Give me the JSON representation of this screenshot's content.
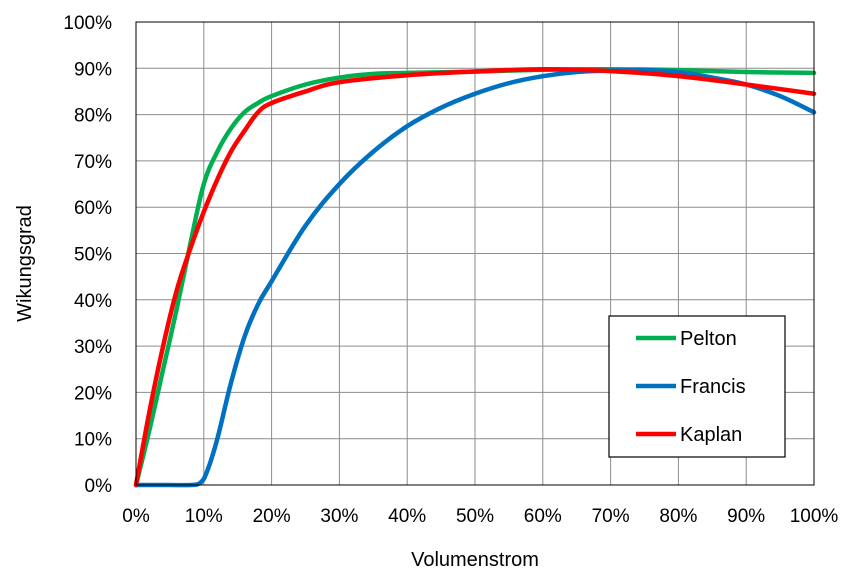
{
  "chart_data": {
    "type": "line",
    "xlabel": "Volumenstrom",
    "ylabel": "Wikungsgrad",
    "xlim": [
      0,
      100
    ],
    "ylim": [
      0,
      100
    ],
    "x_ticks": [
      "0%",
      "10%",
      "20%",
      "30%",
      "40%",
      "50%",
      "60%",
      "70%",
      "80%",
      "90%",
      "100%"
    ],
    "y_ticks": [
      "0%",
      "10%",
      "20%",
      "30%",
      "40%",
      "50%",
      "60%",
      "70%",
      "80%",
      "90%",
      "100%"
    ],
    "grid": true,
    "legend_position": "bottom-right",
    "series": [
      {
        "name": "Pelton",
        "color": "#00b050",
        "points": [
          [
            0,
            0
          ],
          [
            2,
            12
          ],
          [
            4,
            25
          ],
          [
            6,
            38
          ],
          [
            8,
            52
          ],
          [
            10,
            65
          ],
          [
            12,
            72
          ],
          [
            14,
            77
          ],
          [
            16,
            80.5
          ],
          [
            18,
            82.5
          ],
          [
            20,
            84
          ],
          [
            25,
            86.5
          ],
          [
            30,
            88
          ],
          [
            35,
            88.8
          ],
          [
            40,
            89
          ],
          [
            50,
            89.3
          ],
          [
            60,
            89.7
          ],
          [
            70,
            89.8
          ],
          [
            80,
            89.6
          ],
          [
            90,
            89.2
          ],
          [
            100,
            89
          ]
        ]
      },
      {
        "name": "Francis",
        "color": "#0070c0",
        "points": [
          [
            0,
            0
          ],
          [
            5,
            0
          ],
          [
            8,
            0
          ],
          [
            9.5,
            0.5
          ],
          [
            10.5,
            3
          ],
          [
            12,
            10
          ],
          [
            14,
            22
          ],
          [
            16,
            32
          ],
          [
            18,
            39
          ],
          [
            20,
            44
          ],
          [
            25,
            56
          ],
          [
            30,
            65
          ],
          [
            35,
            72
          ],
          [
            40,
            77.5
          ],
          [
            45,
            81.5
          ],
          [
            50,
            84.5
          ],
          [
            55,
            86.8
          ],
          [
            60,
            88.3
          ],
          [
            65,
            89.2
          ],
          [
            70,
            89.5
          ],
          [
            75,
            89.6
          ],
          [
            80,
            89.2
          ],
          [
            85,
            88
          ],
          [
            90,
            86.5
          ],
          [
            95,
            84
          ],
          [
            100,
            80.5
          ]
        ]
      },
      {
        "name": "Kaplan",
        "color": "#ff0000",
        "points": [
          [
            0,
            0
          ],
          [
            2,
            16
          ],
          [
            4,
            30
          ],
          [
            6,
            42
          ],
          [
            8,
            51
          ],
          [
            10,
            59
          ],
          [
            12,
            66
          ],
          [
            14,
            72
          ],
          [
            16,
            76.5
          ],
          [
            18,
            80.5
          ],
          [
            20,
            82.5
          ],
          [
            25,
            85
          ],
          [
            30,
            87
          ],
          [
            40,
            88.5
          ],
          [
            50,
            89.3
          ],
          [
            60,
            89.8
          ],
          [
            70,
            89.4
          ],
          [
            80,
            88.3
          ],
          [
            90,
            86.5
          ],
          [
            100,
            84.5
          ]
        ]
      }
    ]
  }
}
